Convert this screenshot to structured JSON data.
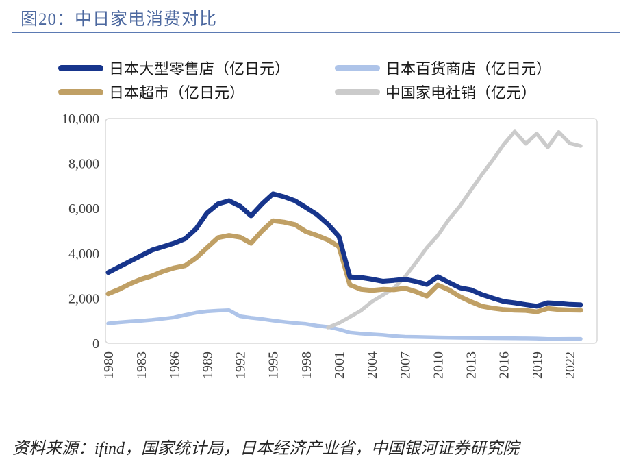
{
  "header": {
    "title": "图20：中日家电消费对比"
  },
  "legend": [
    {
      "label": "日本大型零售店（亿日元）",
      "color": "#17358c"
    },
    {
      "label": "日本百货商店（亿日元）",
      "color": "#aec4e9"
    },
    {
      "label": "日本超市（亿日元）",
      "color": "#c0a065"
    },
    {
      "label": "中国家电社销（亿元）",
      "color": "#cbcbcb"
    }
  ],
  "footer": {
    "source": "资料来源：ifind，国家统计局，日本经济产业省，中国银河证券研究院"
  },
  "chart_data": {
    "type": "line",
    "title": "图20：中日家电消费对比",
    "xlabel": "",
    "ylabel": "",
    "xlim": [
      1980,
      2023
    ],
    "ylim": [
      0,
      10000
    ],
    "grid": false,
    "legend_position": "top",
    "x": [
      1980,
      1981,
      1982,
      1983,
      1984,
      1985,
      1986,
      1987,
      1988,
      1989,
      1990,
      1991,
      1992,
      1993,
      1994,
      1995,
      1996,
      1997,
      1998,
      1999,
      2000,
      2001,
      2002,
      2003,
      2004,
      2005,
      2006,
      2007,
      2008,
      2009,
      2010,
      2011,
      2012,
      2013,
      2014,
      2015,
      2016,
      2017,
      2018,
      2019,
      2020,
      2021,
      2022,
      2023
    ],
    "xticks": [
      "1980",
      "1983",
      "1986",
      "1989",
      "1992",
      "1995",
      "1998",
      "2001",
      "2004",
      "2007",
      "2010",
      "2013",
      "2016",
      "2019",
      "2022"
    ],
    "yticks": [
      {
        "value": 0,
        "label": "0"
      },
      {
        "value": 2000,
        "label": "2,000"
      },
      {
        "value": 4000,
        "label": "4,000"
      },
      {
        "value": 6000,
        "label": "6,000"
      },
      {
        "value": 8000,
        "label": "8,000"
      },
      {
        "value": 10000,
        "label": "10,000"
      }
    ],
    "series": [
      {
        "name": "日本大型零售店（亿日元）",
        "color": "#17358c",
        "width": 7,
        "values": [
          3150,
          3400,
          3650,
          3900,
          4150,
          4300,
          4450,
          4650,
          5100,
          5800,
          6200,
          6340,
          6100,
          5670,
          6200,
          6650,
          6520,
          6340,
          6040,
          5730,
          5300,
          4750,
          2950,
          2930,
          2850,
          2760,
          2800,
          2850,
          2750,
          2620,
          2960,
          2710,
          2470,
          2380,
          2170,
          2010,
          1860,
          1800,
          1720,
          1650,
          1800,
          1770,
          1730,
          1710
        ]
      },
      {
        "name": "日本超市（亿日元）",
        "color": "#c0a065",
        "width": 7,
        "values": [
          2200,
          2400,
          2650,
          2850,
          3000,
          3200,
          3350,
          3450,
          3800,
          4250,
          4700,
          4800,
          4720,
          4450,
          5000,
          5450,
          5390,
          5280,
          4970,
          4800,
          4600,
          4300,
          2600,
          2400,
          2350,
          2400,
          2380,
          2450,
          2300,
          2100,
          2590,
          2380,
          2080,
          1850,
          1650,
          1560,
          1500,
          1470,
          1460,
          1400,
          1550,
          1500,
          1480,
          1470
        ]
      },
      {
        "name": "日本百货商店（亿日元）",
        "color": "#aec4e9",
        "width": 5.5,
        "values": [
          880,
          930,
          970,
          1000,
          1040,
          1090,
          1150,
          1260,
          1360,
          1420,
          1450,
          1470,
          1200,
          1130,
          1080,
          1010,
          950,
          900,
          860,
          780,
          730,
          620,
          480,
          430,
          400,
          370,
          320,
          290,
          280,
          270,
          260,
          250,
          245,
          240,
          235,
          230,
          225,
          220,
          215,
          210,
          190,
          190,
          195,
          195
        ]
      },
      {
        "name": "中国家电社销（亿元）",
        "color": "#cbcbcb",
        "width": 5.5,
        "values": [
          null,
          null,
          null,
          null,
          null,
          null,
          null,
          null,
          null,
          null,
          null,
          null,
          null,
          null,
          null,
          null,
          null,
          null,
          null,
          null,
          700,
          900,
          1170,
          1450,
          1850,
          2150,
          2450,
          2950,
          3580,
          4250,
          4800,
          5500,
          6100,
          6800,
          7500,
          8150,
          8850,
          9420,
          8880,
          9330,
          8720,
          9400,
          8900,
          8780
        ]
      }
    ]
  }
}
